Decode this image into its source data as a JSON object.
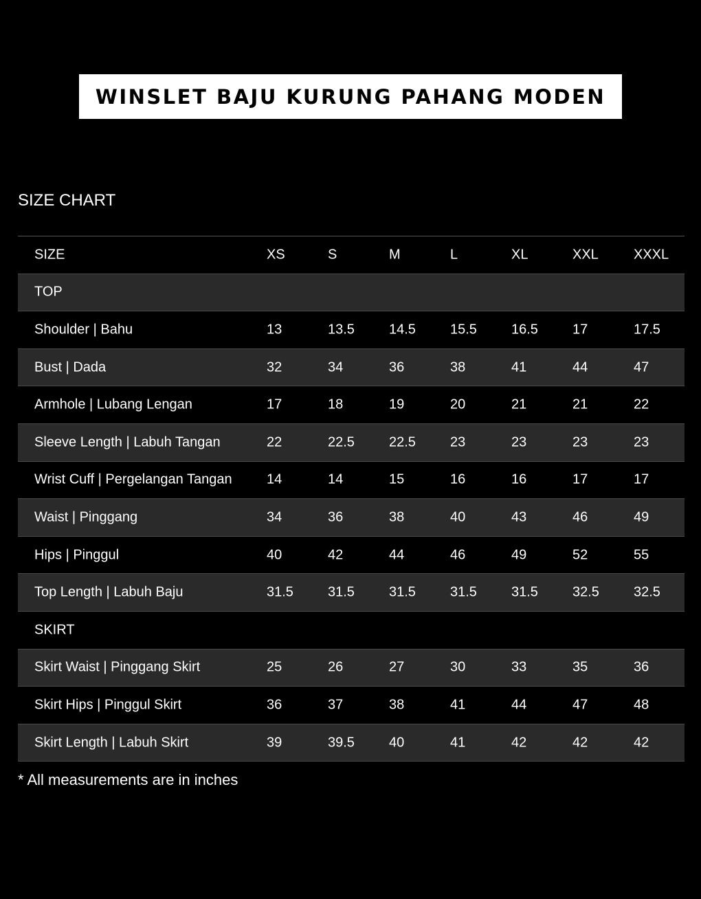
{
  "title": "WINSLET BAJU KURUNG PAHANG MODEN",
  "section_title": "SIZE CHART",
  "header": {
    "label": "SIZE",
    "sizes": [
      "XS",
      "S",
      "M",
      "L",
      "XL",
      "XXL",
      "XXXL"
    ]
  },
  "rows": [
    {
      "type": "section",
      "label": "TOP"
    },
    {
      "type": "data",
      "label": "Shoulder | Bahu",
      "values": [
        "13",
        "13.5",
        "14.5",
        "15.5",
        "16.5",
        "17",
        "17.5"
      ]
    },
    {
      "type": "data",
      "label": "Bust | Dada",
      "values": [
        "32",
        "34",
        "36",
        "38",
        "41",
        "44",
        "47"
      ]
    },
    {
      "type": "data",
      "label": "Armhole | Lubang Lengan",
      "values": [
        "17",
        "18",
        "19",
        "20",
        "21",
        "21",
        "22"
      ]
    },
    {
      "type": "data",
      "label": "Sleeve Length | Labuh Tangan",
      "values": [
        "22",
        "22.5",
        "22.5",
        "23",
        "23",
        "23",
        "23"
      ]
    },
    {
      "type": "data",
      "label": "Wrist Cuff | Pergelangan Tangan",
      "values": [
        "14",
        "14",
        "15",
        "16",
        "16",
        "17",
        "17"
      ]
    },
    {
      "type": "data",
      "label": "Waist | Pinggang",
      "values": [
        "34",
        "36",
        "38",
        "40",
        "43",
        "46",
        "49"
      ]
    },
    {
      "type": "data",
      "label": "Hips | Pinggul",
      "values": [
        "40",
        "42",
        "44",
        "46",
        "49",
        "52",
        "55"
      ]
    },
    {
      "type": "data",
      "label": "Top Length | Labuh Baju",
      "values": [
        "31.5",
        "31.5",
        "31.5",
        "31.5",
        "31.5",
        "32.5",
        "32.5"
      ]
    },
    {
      "type": "section",
      "label": "SKIRT"
    },
    {
      "type": "data",
      "label": "Skirt Waist | Pinggang Skirt",
      "values": [
        "25",
        "26",
        "27",
        "30",
        "33",
        "35",
        "36"
      ]
    },
    {
      "type": "data",
      "label": "Skirt Hips | Pinggul Skirt",
      "values": [
        "36",
        "37",
        "38",
        "41",
        "44",
        "47",
        "48"
      ]
    },
    {
      "type": "data",
      "label": "Skirt Length | Labuh Skirt",
      "values": [
        "39",
        "39.5",
        "40",
        "41",
        "42",
        "42",
        "42"
      ]
    }
  ],
  "note": "* All measurements are in inches",
  "colors": {
    "background": "#000000",
    "row_alt": "#2a2a2a",
    "title_box": "#ffffff"
  }
}
